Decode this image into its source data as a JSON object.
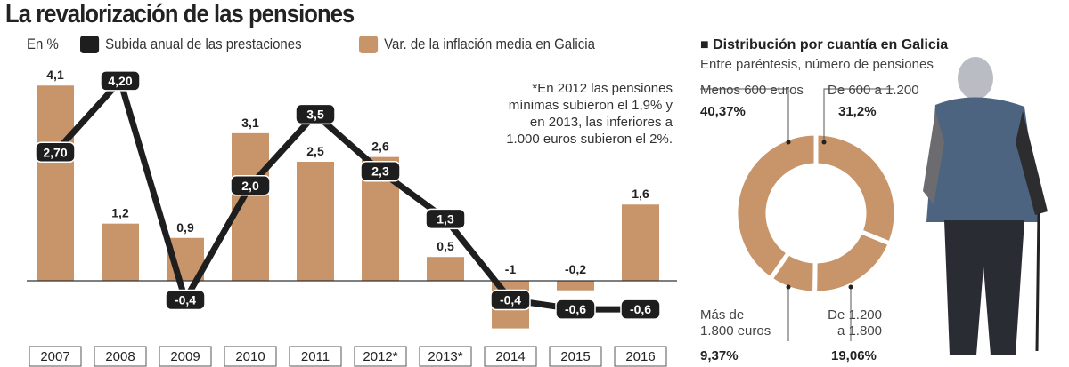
{
  "title": "La revalorización de las pensiones",
  "colors": {
    "line": "#1e1e1e",
    "bar": "#c8956a",
    "axis": "#333333"
  },
  "chart_data": [
    {
      "type": "bar+line",
      "unit_label": "En %",
      "legend": [
        "Subida anual de las prestaciones",
        "Var. de la inflación media en Galicia"
      ],
      "categories": [
        "2007",
        "2008",
        "2009",
        "2010",
        "2011",
        "2012*",
        "2013*",
        "2014",
        "2015",
        "2016"
      ],
      "series": [
        {
          "name": "Var. de la inflación media en Galicia",
          "type": "bar",
          "values": [
            4.1,
            1.2,
            0.9,
            3.1,
            2.5,
            2.6,
            0.5,
            -1,
            -0.2,
            1.6
          ],
          "labels": [
            "4,1",
            "1,2",
            "0,9",
            "3,1",
            "2,5",
            "2,6",
            "0,5",
            "-1",
            "-0,2",
            "1,6"
          ]
        },
        {
          "name": "Subida anual de las prestaciones",
          "type": "line",
          "values": [
            2.7,
            4.2,
            -0.4,
            2.0,
            3.5,
            2.3,
            1.3,
            -0.4,
            -0.6,
            -0.6
          ],
          "labels": [
            "2,70",
            "4,20",
            "-0,4",
            "2,0",
            "3,5",
            "2,3",
            "1,3",
            "-0,4",
            "-0,6",
            "-0,6"
          ]
        }
      ],
      "note": "*En 2012 las pensiones mínimas subieron el 1,9% y en 2013, las inferiores a 1.000 euros subieron el 2%."
    },
    {
      "type": "pie",
      "style": "donut",
      "title": "Distribución por cuantía en Galicia",
      "subtitle": "Entre paréntesis, número de pensiones",
      "slices": [
        {
          "label": "De 600 a 1.200",
          "value": 31.2,
          "value_label": "31,2%"
        },
        {
          "label": "De 1.200 a 1.800",
          "label_lines": [
            "De 1.200",
            "a 1.800"
          ],
          "value": 19.06,
          "value_label": "19,06%"
        },
        {
          "label": "Más de 1.800 euros",
          "label_lines": [
            "Más de",
            "1.800 euros"
          ],
          "value": 9.37,
          "value_label": "9,37%"
        },
        {
          "label": "Menos 600 euros",
          "value": 40.37,
          "value_label": "40,37%"
        }
      ]
    }
  ]
}
